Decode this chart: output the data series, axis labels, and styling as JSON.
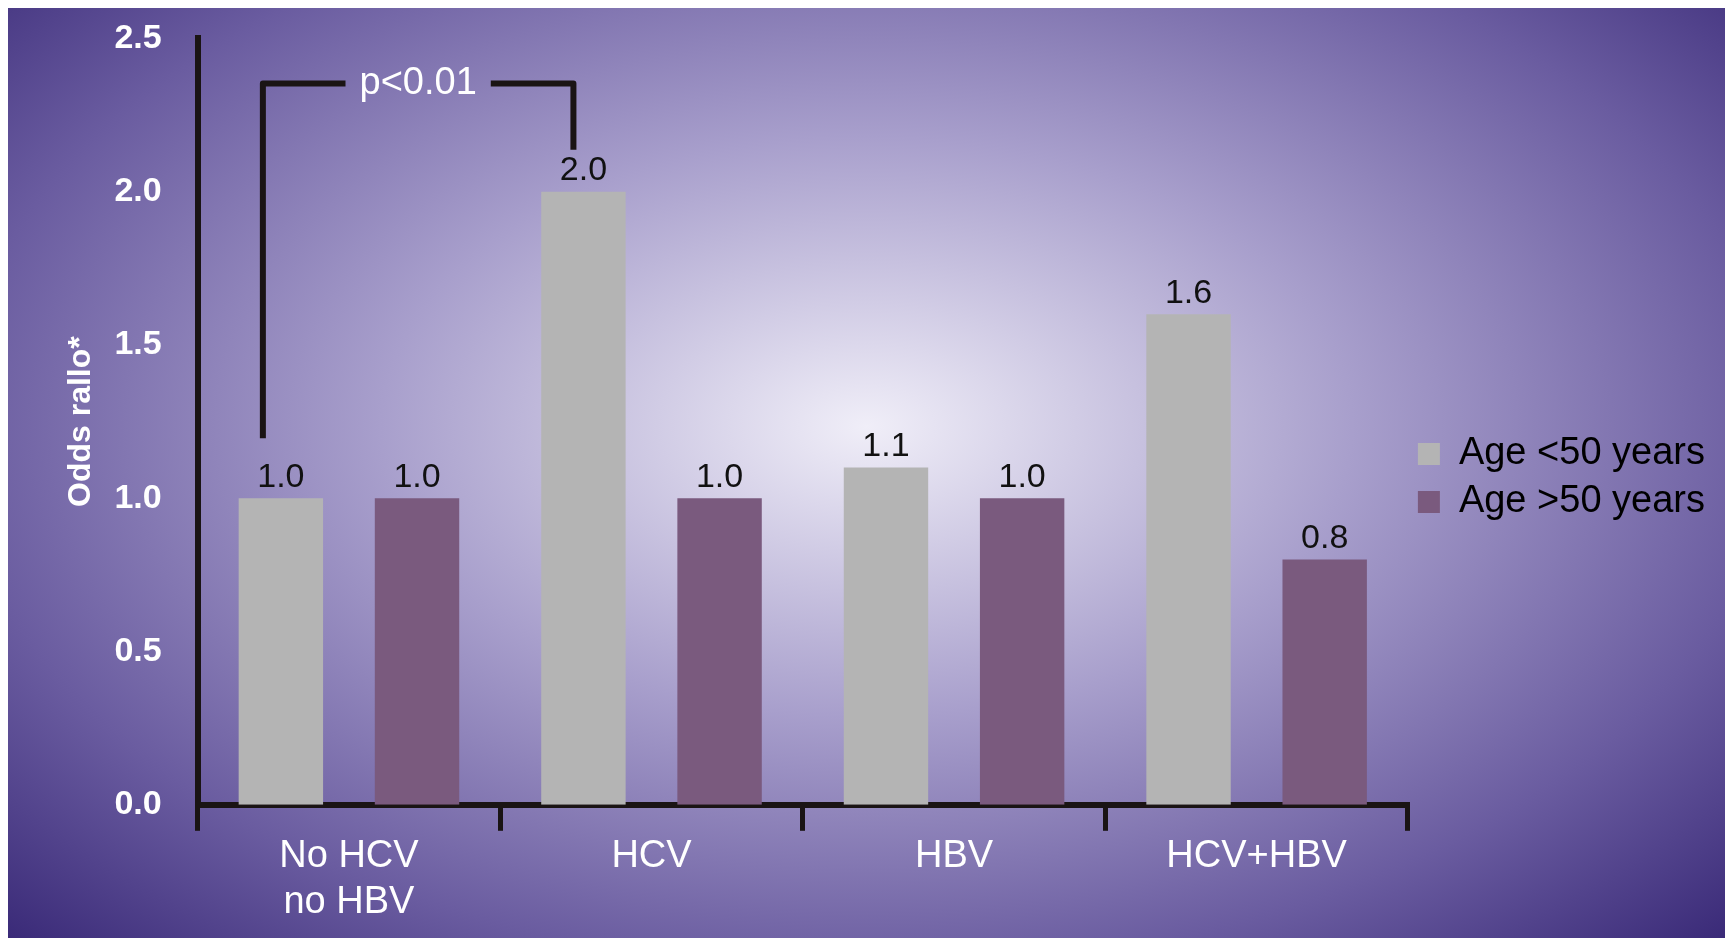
{
  "chart_data": {
    "type": "bar",
    "ylabel": "Odds rallo*",
    "categories": [
      "No HCV\nno HBV",
      "HCV",
      "HBV",
      "HCV+HBV"
    ],
    "series": [
      {
        "name": "Age <50 years",
        "color": "#b4b4b4",
        "values": [
          1.0,
          2.0,
          1.1,
          1.6
        ],
        "value_labels": [
          "1.0",
          "2.0",
          "1.1",
          "1.6"
        ]
      },
      {
        "name": "Age >50 years",
        "color": "#7a5a7e",
        "values": [
          1.0,
          1.0,
          1.0,
          0.8
        ],
        "value_labels": [
          "1.0",
          "1.0",
          "1.0",
          "0.8"
        ]
      }
    ],
    "ylim": [
      0,
      2.5
    ],
    "yticks": [
      {
        "value": 0,
        "label": "0.0"
      },
      {
        "value": 0.5,
        "label": "0.5"
      },
      {
        "value": 1,
        "label": "1.0"
      },
      {
        "value": 1.5,
        "label": "1.5"
      },
      {
        "value": 2,
        "label": "2.0"
      },
      {
        "value": 2.5,
        "label": "2.5"
      }
    ],
    "grid": false,
    "legend": "right",
    "annotations": [
      "p<0.01"
    ]
  }
}
